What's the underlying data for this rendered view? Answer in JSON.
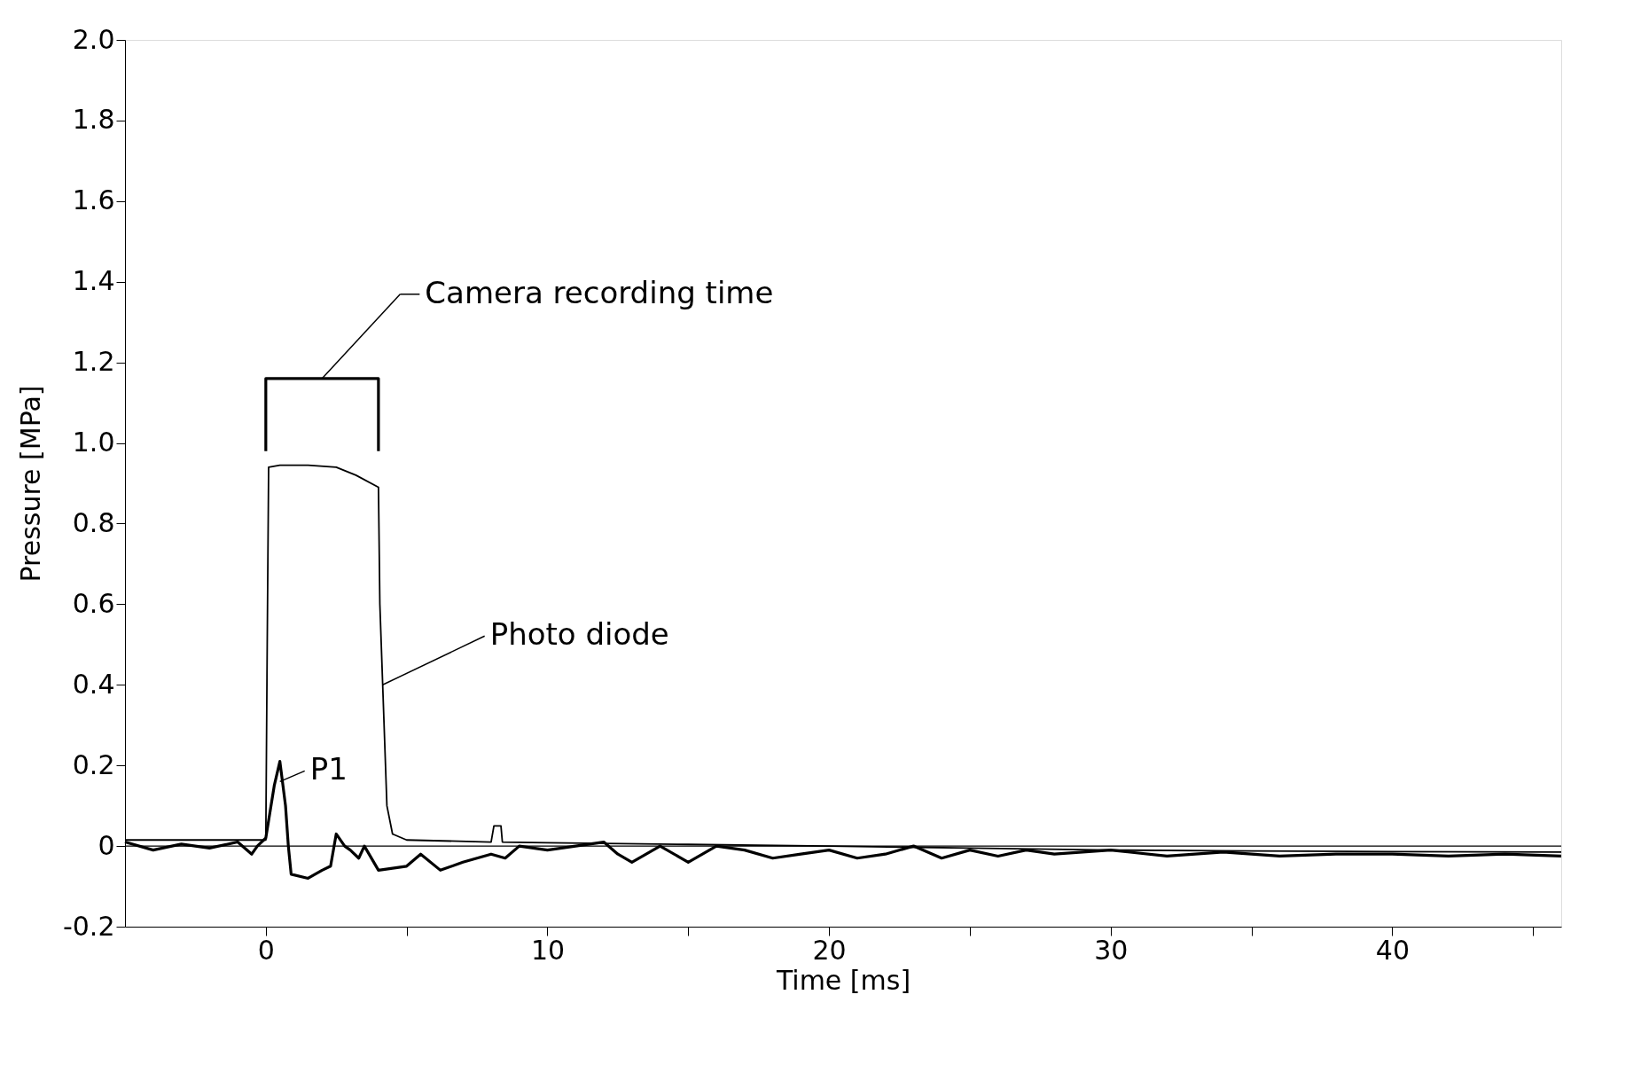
{
  "chart_data": {
    "type": "line",
    "xlabel": "Time [ms]",
    "ylabel": "Pressure [MPa]",
    "xlim": [
      -5,
      46
    ],
    "ylim": [
      -0.2,
      2.0
    ],
    "xticks": [
      0,
      10,
      20,
      30,
      40,
      {
        "value": 5,
        "label": null
      },
      {
        "value": 15,
        "label": null
      },
      {
        "value": 25,
        "label": null
      },
      {
        "value": 35,
        "label": null
      },
      {
        "value": 45,
        "label": null
      }
    ],
    "yticks": [
      {
        "value": -0.2,
        "label": "-0.2"
      },
      0,
      0.2,
      0.4,
      0.6,
      0.8,
      {
        "value": 1.0,
        "label": "1.0"
      },
      1.2,
      1.4,
      1.6,
      1.8,
      {
        "value": 2.0,
        "label": "2.0"
      }
    ],
    "grid": false,
    "series": [
      {
        "color": "#000000",
        "x": [
          -5,
          -2,
          0,
          0.05,
          0.1,
          0.5,
          1.5,
          2.5,
          3.2,
          4.0,
          4.05,
          4.15,
          4.3,
          4.5,
          5,
          8,
          8.1,
          8.2,
          8.35,
          8.4,
          10,
          15,
          20,
          25,
          30,
          35,
          40,
          46
        ],
        "values": [
          0.015,
          0.015,
          0.015,
          0.5,
          0.94,
          0.945,
          0.945,
          0.94,
          0.92,
          0.89,
          0.6,
          0.4,
          0.1,
          0.03,
          0.015,
          0.01,
          0.05,
          0.05,
          0.05,
          0.01,
          0.008,
          0.004,
          0.0,
          -0.005,
          -0.01,
          -0.012,
          -0.014,
          -0.015
        ]
      },
      {
        "color": "#000000",
        "x": [
          -5,
          -4,
          -3,
          -2,
          -1,
          -0.5,
          -0.3,
          0,
          0.3,
          0.5,
          0.7,
          0.8,
          0.9,
          1.5,
          2.0,
          2.3,
          2.5,
          2.8,
          3.0,
          3.3,
          3.5,
          4.0,
          5,
          5.5,
          6.2,
          7,
          8,
          8.5,
          9,
          10,
          11,
          12,
          12.5,
          13,
          14,
          15,
          16,
          17,
          18,
          19,
          20,
          21,
          22,
          23,
          24,
          25,
          26,
          27,
          28,
          30,
          32,
          34,
          36,
          38,
          40,
          42,
          44,
          46
        ],
        "values": [
          0.01,
          -0.01,
          0.005,
          -0.005,
          0.01,
          -0.02,
          0.0,
          0.02,
          0.15,
          0.21,
          0.1,
          0.0,
          -0.07,
          -0.08,
          -0.06,
          -0.05,
          0.03,
          0.0,
          -0.01,
          -0.03,
          0.0,
          -0.06,
          -0.05,
          -0.02,
          -0.06,
          -0.04,
          -0.02,
          -0.03,
          0.0,
          -0.01,
          0.0,
          0.01,
          -0.02,
          -0.04,
          0.0,
          -0.04,
          0.0,
          -0.01,
          -0.03,
          -0.02,
          -0.01,
          -0.03,
          -0.02,
          0.0,
          -0.03,
          -0.01,
          -0.025,
          -0.01,
          -0.02,
          -0.01,
          -0.025,
          -0.015,
          -0.025,
          -0.02,
          -0.02,
          -0.025,
          -0.02,
          -0.025
        ]
      },
      {
        "color": "#000000",
        "x": [
          0,
          0,
          4,
          4
        ],
        "values": [
          0.98,
          1.16,
          1.16,
          0.98
        ]
      }
    ],
    "ref_lines": [
      {
        "axis": "y",
        "value": 0,
        "color": "#000000"
      }
    ],
    "annotations": [
      {
        "text": "Photo diode",
        "x": 4.15,
        "y": 0.4
      },
      {
        "text": "P1",
        "x": 0.5,
        "y": 0.16
      },
      {
        "text": "Camera recording time",
        "x": 2.0,
        "y": 1.16
      }
    ]
  }
}
